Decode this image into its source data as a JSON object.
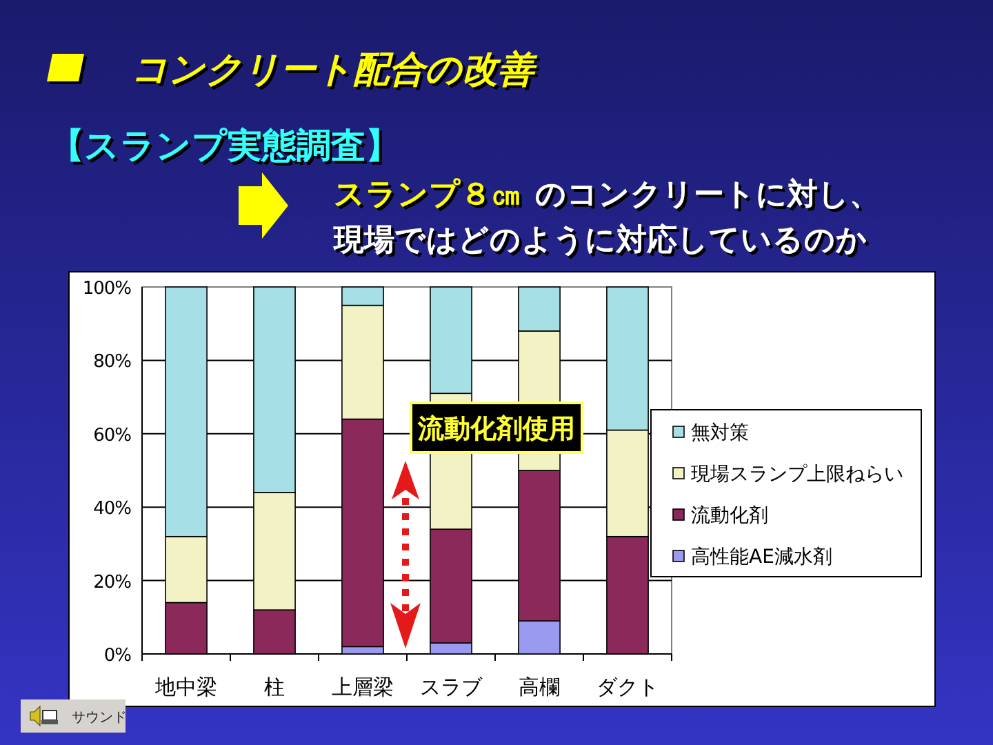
{
  "chart_data": {
    "type": "bar",
    "title": "コンクリート配合の改善",
    "subtitle": "【スランプ実態調査】",
    "categories": [
      "地中梁",
      "柱",
      "上層梁",
      "スラブ",
      "高欄",
      "ダクト"
    ],
    "stacked": true,
    "series": [
      {
        "name": "高性能AE減水剤",
        "color": "#9a9af0",
        "values": [
          0,
          0,
          2,
          3,
          9,
          0
        ]
      },
      {
        "name": "流動化剤",
        "color": "#8b2a5a",
        "values": [
          14,
          12,
          62,
          31,
          41,
          32
        ]
      },
      {
        "name": "現場スランプ上限ねらい",
        "color": "#f2f2c4",
        "values": [
          18,
          32,
          31,
          37,
          38,
          29
        ]
      },
      {
        "name": "無対策",
        "color": "#a6dfe6",
        "values": [
          68,
          56,
          5,
          29,
          12,
          39
        ]
      }
    ],
    "ylim": [
      0,
      100
    ],
    "yticks": [
      {
        "value": 0,
        "label": "0%"
      },
      {
        "value": 20,
        "label": "20%"
      },
      {
        "value": 40,
        "label": "40%"
      },
      {
        "value": 60,
        "label": "60%"
      },
      {
        "value": 80,
        "label": "80%"
      },
      {
        "value": 100,
        "label": "100%"
      }
    ],
    "grid": "y",
    "legend": "right",
    "annotations": [
      "スランプ８㎝",
      "のコンクリートに対し、",
      "現場ではどのように対応しているのか",
      "流動化剤使用",
      "サウンド"
    ]
  }
}
